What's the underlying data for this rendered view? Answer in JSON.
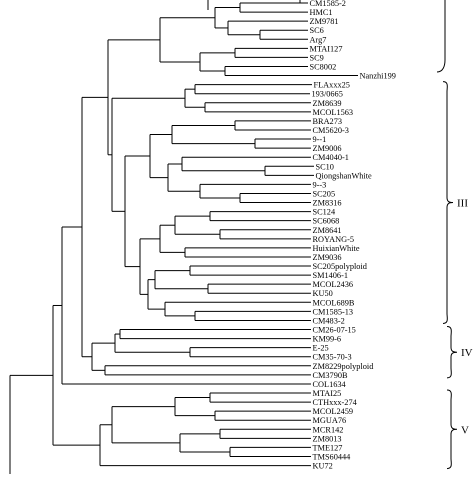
{
  "dendrogram": {
    "leaves": [
      "CM1585-2",
      "HMC1",
      "ZM9781",
      "SC6",
      "Arg7",
      "MTAI127",
      "SC9",
      "SC8002",
      "Nanzhi199",
      "FLAxxx25",
      "193/0665",
      "ZM8639",
      "MCOL1563",
      "BRA273",
      "CM5620-3",
      "9--1",
      "ZM9006",
      "CM4040-1",
      "SC10",
      "QiongshanWhite",
      "9--3",
      "SC205",
      "ZM8316",
      "SC124",
      "SC6068",
      "ZM8641",
      "ROYANG-5",
      "HuixianWhite",
      "ZM9036",
      "SC205polyploid",
      "SM1406-1",
      "MCOL2436",
      "KU50",
      "MCOL689B",
      "CM1585-13",
      "CM483-2",
      "CM26-07-15",
      "KM99-6",
      "E-25",
      "CM35-70-3",
      "ZM8229polyploid",
      "CM3790B",
      "COL1634",
      "MTAI25",
      "CTHxxx-274",
      "MCOL2459",
      "MGUA76",
      "MCR142",
      "ZM8013",
      "TME127",
      "TMS60444",
      "KU72"
    ],
    "groups": [
      {
        "label": "III",
        "first": "FLAxxx25",
        "last": "CM483-2"
      },
      {
        "label": "IV",
        "first": "CM26-07-15",
        "last": "CM3790B"
      },
      {
        "label": "V",
        "first": "MTAI25",
        "last": "KU72"
      }
    ]
  }
}
